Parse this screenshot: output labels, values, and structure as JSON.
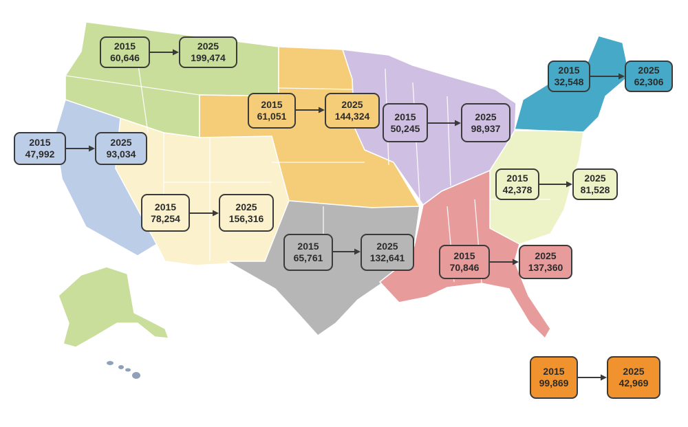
{
  "regions": [
    {
      "id": "northwest",
      "color": "#c9de9b",
      "from": {
        "year": "2015",
        "value": "60,646"
      },
      "to": {
        "year": "2025",
        "value": "199,474"
      }
    },
    {
      "id": "california",
      "color": "#bccde8",
      "from": {
        "year": "2015",
        "value": "47,992"
      },
      "to": {
        "year": "2025",
        "value": "93,034"
      }
    },
    {
      "id": "southwest",
      "color": "#fbf1cc",
      "from": {
        "year": "2015",
        "value": "78,254"
      },
      "to": {
        "year": "2025",
        "value": "156,316"
      }
    },
    {
      "id": "plains",
      "color": "#f5cd78",
      "from": {
        "year": "2015",
        "value": "61,051"
      },
      "to": {
        "year": "2025",
        "value": "144,324"
      }
    },
    {
      "id": "midwest",
      "color": "#cfc0e3",
      "from": {
        "year": "2015",
        "value": "50,245"
      },
      "to": {
        "year": "2025",
        "value": "98,937"
      }
    },
    {
      "id": "northeast",
      "color": "#46a9c7",
      "from": {
        "year": "2015",
        "value": "32,548"
      },
      "to": {
        "year": "2025",
        "value": "62,306"
      }
    },
    {
      "id": "mid-atlantic",
      "color": "#eef2c7",
      "from": {
        "year": "2015",
        "value": "42,378"
      },
      "to": {
        "year": "2025",
        "value": "81,528"
      }
    },
    {
      "id": "south-central",
      "color": "#b6b6b6",
      "from": {
        "year": "2015",
        "value": "65,761"
      },
      "to": {
        "year": "2025",
        "value": "132,641"
      }
    },
    {
      "id": "southeast",
      "color": "#e79b9b",
      "from": {
        "year": "2015",
        "value": "70,846"
      },
      "to": {
        "year": "2025",
        "value": "137,360"
      }
    },
    {
      "id": "offshore",
      "color": "#f0922e",
      "from": {
        "year": "2015",
        "value": "99,869"
      },
      "to": {
        "year": "2025",
        "value": "42,969"
      }
    }
  ],
  "colors": {
    "arrow": "#3a3a3a",
    "box_border": "#3a3a3a",
    "alaska": "#c9de9b",
    "hawaii": "#8fa0b8"
  }
}
